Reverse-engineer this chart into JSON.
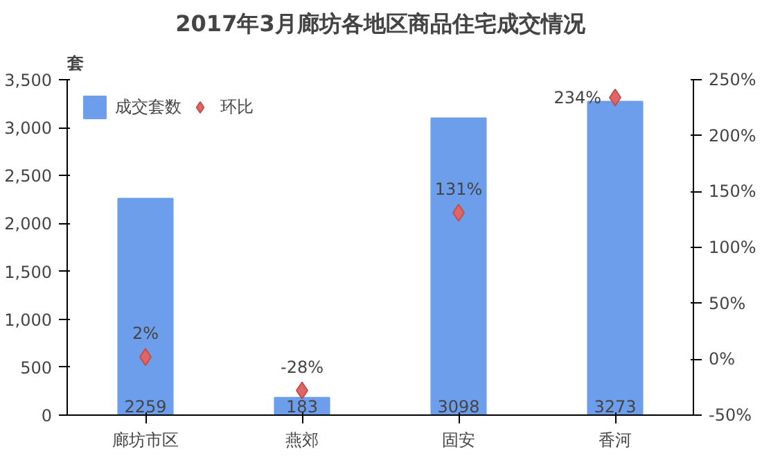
{
  "chart_data": {
    "type": "bar",
    "title": "2017年3月廊坊各地区商品住宅成交情况",
    "ylabel": "套",
    "categories": [
      "廊坊市区",
      "燕郊",
      "固安",
      "香河"
    ],
    "series": [
      {
        "name": "成交套数",
        "type": "bar",
        "color": "#6d9eeb",
        "values": [
          2259,
          183,
          3098,
          3273
        ],
        "value_labels": [
          "2259",
          "183",
          "3098",
          "3273"
        ]
      },
      {
        "name": "环比",
        "type": "scatter",
        "axis": "y2",
        "color": "#e06666",
        "marker": "diamond",
        "values": [
          2,
          -28,
          131,
          234
        ],
        "value_labels": [
          "2%",
          "-28%",
          "131%",
          "234%"
        ]
      }
    ],
    "ylim": [
      0,
      3500
    ],
    "yticks": [
      0,
      500,
      {
        "value": 1000,
        "label": "1,000"
      },
      {
        "value": 1500,
        "label": "1,500"
      },
      {
        "value": 2000,
        "label": "2,000"
      },
      {
        "value": 2500,
        "label": "2,500"
      },
      {
        "value": 3000,
        "label": "3,000"
      },
      {
        "value": 3500,
        "label": "3,500"
      }
    ],
    "y2lim": [
      -50,
      250
    ],
    "y2ticks": [
      {
        "value": -50,
        "label": "-50%"
      },
      {
        "value": 0,
        "label": "0%"
      },
      {
        "value": 50,
        "label": "50%"
      },
      {
        "value": 100,
        "label": "100%"
      },
      {
        "value": 150,
        "label": "150%"
      },
      {
        "value": 200,
        "label": "200%"
      },
      {
        "value": 250,
        "label": "250%"
      }
    ],
    "legend": "top left",
    "grid": false
  }
}
